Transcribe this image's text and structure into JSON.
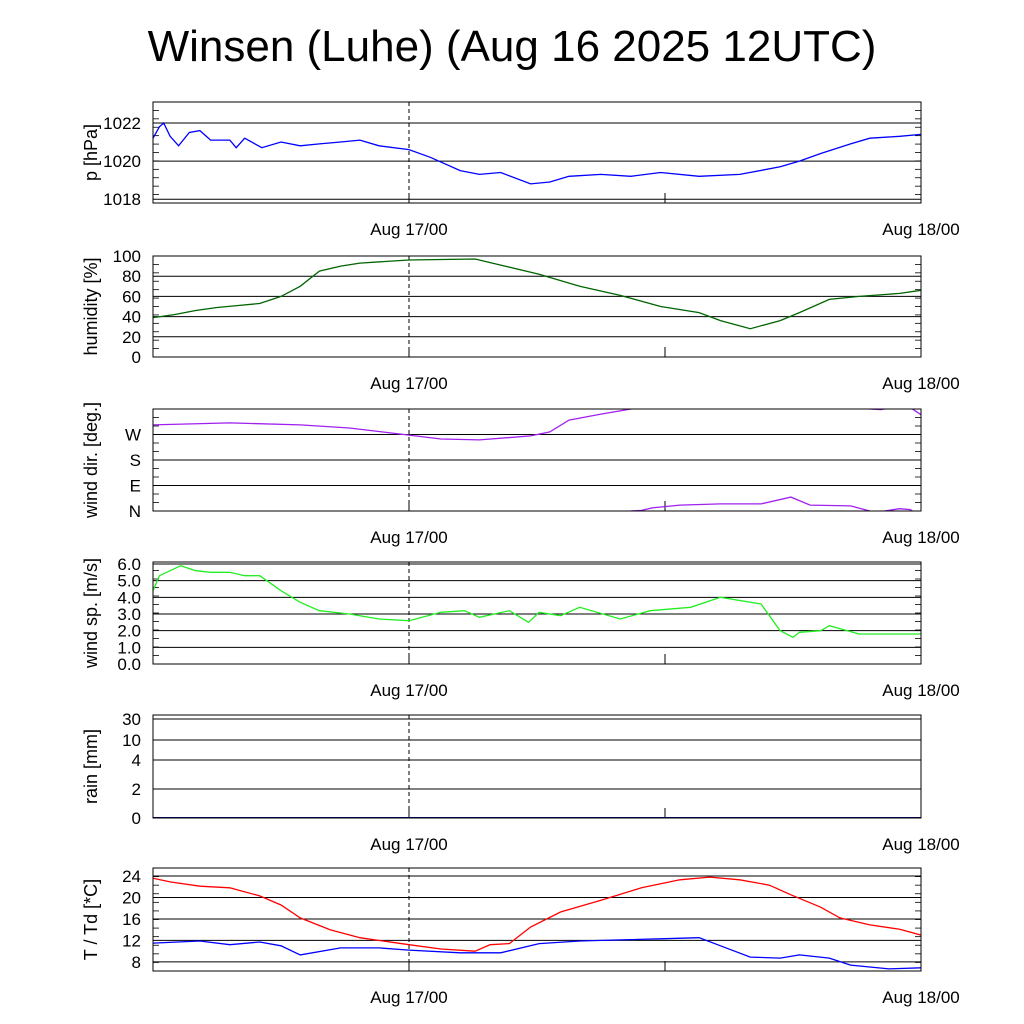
{
  "chart_data": {
    "type": "line",
    "title": "Winsen (Luhe) (Aug 16 2025 12UTC)",
    "xlabel": "",
    "x_units": "hours since Aug 16 12UTC",
    "xlim": [
      0,
      36
    ],
    "x_ticks": [
      {
        "value": 12,
        "label": "Aug 17/00"
      },
      {
        "value": 24,
        "label": ""
      },
      {
        "value": 36,
        "label": "Aug 18/00"
      }
    ],
    "grid": "horizontal at major y ticks; dashed vertical at Aug 17/00",
    "panels": [
      {
        "ylabel": "p [hPa]",
        "ylim": [
          1017.8,
          1023.1
        ],
        "y_ticks": [
          {
            "value": 1018,
            "label": "1018"
          },
          {
            "value": 1020,
            "label": "1020"
          },
          {
            "value": 1022,
            "label": "1022"
          }
        ],
        "series": [
          {
            "name": "pressure",
            "color": "#0000ff",
            "x": [
              0,
              0.3,
              0.5,
              0.8,
              1.2,
              1.7,
              2.2,
              2.7,
              3.6,
              3.9,
              4.3,
              5.1,
              6.0,
              6.9,
              7.8,
              8.8,
              9.7,
              10.6,
              12,
              13,
              14.4,
              15.3,
              16.3,
              17.7,
              18.6,
              19.5,
              21,
              22.4,
              23.8,
              25.6,
              27.5,
              29.4,
              30.3,
              31.3,
              32.7,
              33.6,
              35,
              36
            ],
            "y": [
              1021.2,
              1021.8,
              1022.0,
              1021.3,
              1020.8,
              1021.5,
              1021.6,
              1021.1,
              1021.1,
              1020.7,
              1021.2,
              1020.7,
              1021.0,
              1020.8,
              1020.9,
              1021.0,
              1021.1,
              1020.8,
              1020.6,
              1020.2,
              1019.5,
              1019.3,
              1019.4,
              1018.8,
              1018.9,
              1019.2,
              1019.3,
              1019.2,
              1019.4,
              1019.2,
              1019.3,
              1019.7,
              1020.0,
              1020.4,
              1020.9,
              1021.2,
              1021.3,
              1021.4
            ]
          }
        ]
      },
      {
        "ylabel": "humidity [%]",
        "ylim": [
          0,
          100
        ],
        "y_ticks": [
          {
            "value": 0,
            "label": "0"
          },
          {
            "value": 20,
            "label": "20"
          },
          {
            "value": 40,
            "label": "40"
          },
          {
            "value": 60,
            "label": "60"
          },
          {
            "value": 80,
            "label": "80"
          },
          {
            "value": 100,
            "label": "100"
          }
        ],
        "series": [
          {
            "name": "humidity",
            "color": "#006400",
            "x": [
              0,
              1,
              2,
              3,
              4,
              5,
              6,
              6.9,
              7.8,
              8.8,
              9.7,
              12,
              15.1,
              16.3,
              18.1,
              20,
              21.9,
              23.8,
              25.6,
              26.6,
              28,
              29.4,
              30.3,
              31.7,
              33.1,
              35,
              36
            ],
            "y": [
              39,
              42,
              46,
              49,
              51,
              53,
              60,
              70,
              85,
              90,
              93,
              96,
              97,
              91,
              82,
              70,
              61,
              50,
              44,
              36,
              28,
              36,
              44,
              57,
              60,
              63,
              66
            ]
          }
        ]
      },
      {
        "ylabel": "wind dir. [deg.]",
        "ylim": [
          0,
          360
        ],
        "wrap": 360,
        "y_ticks": [
          {
            "value": 0,
            "label": "N"
          },
          {
            "value": 90,
            "label": "E"
          },
          {
            "value": 180,
            "label": "S"
          },
          {
            "value": 270,
            "label": "W"
          }
        ],
        "series": [
          {
            "name": "wind direction",
            "color": "#a020f0",
            "x": [
              0,
              3.6,
              6.9,
              9.2,
              12,
              13.5,
              15.3,
              17.7,
              18.6,
              19.5,
              21,
              22.4,
              22.9,
              23.4,
              24.7,
              26.6,
              28.5,
              29.9,
              30.8,
              32.7,
              33.6,
              34.1,
              35,
              35.5,
              36
            ],
            "y": [
              304,
              311,
              304,
              293,
              268,
              254,
              251,
              265,
              279,
              321,
              342,
              360,
              362,
              371,
              381,
              385,
              385,
              409,
              381,
              378,
              360,
              358,
              368,
              365,
              340
            ]
          }
        ]
      },
      {
        "ylabel": "wind sp. [m/s]",
        "ylim": [
          0,
          6.12
        ],
        "y_ticks": [
          {
            "value": 0,
            "label": "0.0"
          },
          {
            "value": 1,
            "label": "1.0"
          },
          {
            "value": 2,
            "label": "2.0"
          },
          {
            "value": 3,
            "label": "3.0"
          },
          {
            "value": 4,
            "label": "4.0"
          },
          {
            "value": 5,
            "label": "5.0"
          },
          {
            "value": 6,
            "label": "6.0"
          }
        ],
        "series": [
          {
            "name": "wind speed",
            "color": "#22ee22",
            "x": [
              0,
              0.3,
              0.8,
              1.3,
              2.0,
              2.7,
              3.6,
              4.3,
              5.0,
              6.0,
              6.9,
              7.8,
              9.2,
              10.6,
              12,
              13.5,
              14.6,
              15.3,
              16.7,
              17.6,
              18.1,
              19.1,
              20,
              21.9,
              23.3,
              25.2,
              26.6,
              28.5,
              29.4,
              30,
              30.3,
              31.3,
              31.7,
              33.1,
              36
            ],
            "y": [
              4.4,
              5.3,
              5.6,
              5.9,
              5.6,
              5.5,
              5.5,
              5.3,
              5.3,
              4.4,
              3.7,
              3.2,
              3.0,
              2.7,
              2.6,
              3.1,
              3.2,
              2.8,
              3.2,
              2.5,
              3.1,
              2.9,
              3.4,
              2.7,
              3.2,
              3.4,
              4.0,
              3.6,
              2.0,
              1.6,
              1.9,
              2.0,
              2.3,
              1.8,
              1.8
            ]
          }
        ]
      },
      {
        "ylabel": "rain [mm]",
        "ylim": [
          0,
          30
        ],
        "scale": "nonlinear",
        "y_ticks": [
          {
            "value": 0,
            "label": "0"
          },
          {
            "value": 2,
            "label": "2"
          },
          {
            "value": 4,
            "label": "4"
          },
          {
            "value": 10,
            "label": "10"
          },
          {
            "value": 30,
            "label": "30"
          }
        ],
        "series": [
          {
            "name": "rain",
            "color": "#00008b",
            "x": [
              0,
              36
            ],
            "y": [
              0,
              0
            ]
          }
        ]
      },
      {
        "ylabel": "T / Td [*C]",
        "ylim": [
          6.3,
          25.5
        ],
        "y_ticks": [
          {
            "value": 8,
            "label": "8"
          },
          {
            "value": 12,
            "label": "12"
          },
          {
            "value": 16,
            "label": "16"
          },
          {
            "value": 20,
            "label": "20"
          },
          {
            "value": 24,
            "label": "24"
          }
        ],
        "series": [
          {
            "name": "T",
            "color": "#ff0000",
            "x": [
              0,
              0.8,
              2.2,
              3.6,
              5.0,
              6.0,
              6.9,
              8.3,
              9.7,
              12,
              13.5,
              15.1,
              15.8,
              16.7,
              17.7,
              19.1,
              21,
              22.9,
              24.7,
              26.1,
              27.5,
              28.9,
              29.9,
              31.3,
              32.2,
              33.6,
              35,
              36
            ],
            "y": [
              23.6,
              22.9,
              22.1,
              21.8,
              20.3,
              18.6,
              16.2,
              14.0,
              12.5,
              11.2,
              10.4,
              10.0,
              11.2,
              11.4,
              14.5,
              17.3,
              19.5,
              21.8,
              23.3,
              23.8,
              23.3,
              22.3,
              20.5,
              18.2,
              16.2,
              14.9,
              14.1,
              13.0
            ]
          },
          {
            "name": "Td",
            "color": "#0000ff",
            "x": [
              0,
              2.2,
              3.6,
              5.0,
              6.0,
              6.9,
              8.8,
              10.6,
              12,
              14.4,
              16.3,
              18.1,
              20,
              21.9,
              23.8,
              25.6,
              26.6,
              28,
              29.4,
              30.3,
              31.7,
              32.7,
              34.5,
              36
            ],
            "y": [
              11.5,
              11.9,
              11.2,
              11.7,
              11.0,
              9.3,
              10.6,
              10.6,
              10.2,
              9.7,
              9.7,
              11.4,
              11.9,
              12.1,
              12.3,
              12.5,
              11.0,
              8.9,
              8.7,
              9.3,
              8.7,
              7.4,
              6.7,
              6.9
            ]
          }
        ]
      }
    ]
  }
}
